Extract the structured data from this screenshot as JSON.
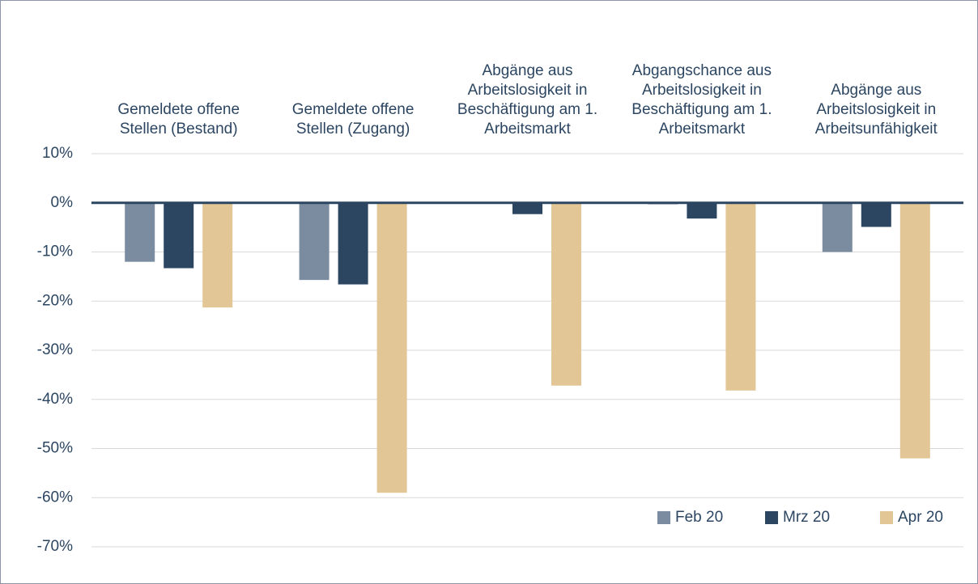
{
  "chart_data": {
    "type": "bar",
    "categories": [
      "Gemeldete offene Stellen (Bestand)",
      "Gemeldete offene Stellen (Zugang)",
      "Abgänge aus Arbeitslosigkeit in Beschäftigung am 1. Arbeitsmarkt",
      "Abgangschance aus Arbeitslosigkeit in Beschäftigung am 1. Arbeitsmarkt",
      "Abgänge aus Arbeitslosigkeit in Arbeitsunfähigkeit"
    ],
    "series": [
      {
        "name": "Feb 20",
        "color": "#7b8ba0",
        "values": [
          -12,
          -15.7,
          0.2,
          -0.3,
          -10
        ]
      },
      {
        "name": "Mrz 20",
        "color": "#2c4662",
        "values": [
          -13.3,
          -16.6,
          -2.3,
          -3.2,
          -4.9
        ]
      },
      {
        "name": "Apr 20",
        "color": "#e2c696",
        "values": [
          -21.3,
          -59,
          -37.2,
          -38.2,
          -52
        ]
      }
    ],
    "ylim": [
      -70,
      10
    ],
    "yticks": [
      {
        "value": 10,
        "label": "10%"
      },
      {
        "value": 0,
        "label": "0%"
      },
      {
        "value": -10,
        "label": "-10%"
      },
      {
        "value": -20,
        "label": "-20%"
      },
      {
        "value": -30,
        "label": "-30%"
      },
      {
        "value": -40,
        "label": "-40%"
      },
      {
        "value": -50,
        "label": "-50%"
      },
      {
        "value": -60,
        "label": "-60%"
      },
      {
        "value": -70,
        "label": "-70%"
      }
    ],
    "grid": true,
    "legend_position": "lower right"
  }
}
